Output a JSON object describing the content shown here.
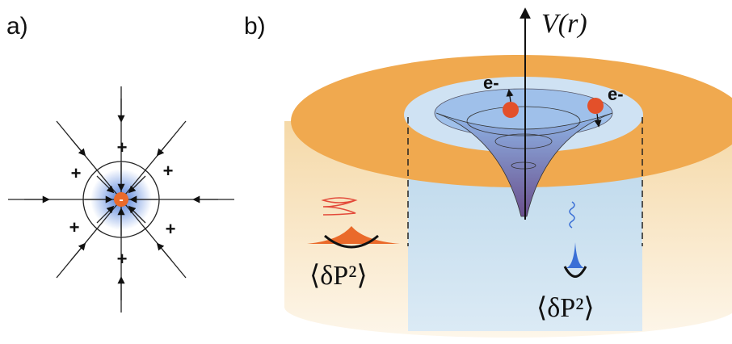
{
  "panel_a": {
    "label": "a)",
    "signs": [
      "+",
      "+",
      "+",
      "+",
      "+",
      "+"
    ],
    "center": "-"
  },
  "panel_b": {
    "label": "b)",
    "axis_label": "V(r)",
    "electrons": [
      "e-",
      "e-"
    ],
    "fluctuation_labels": [
      "⟨δP²⟩",
      "⟨δP²⟩"
    ]
  }
}
